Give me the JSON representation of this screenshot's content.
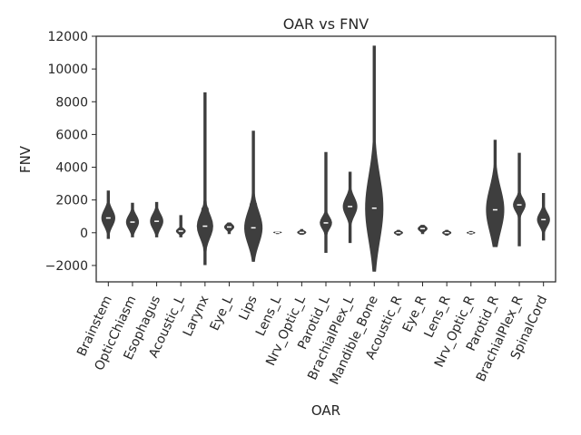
{
  "chart_data": {
    "type": "violin",
    "title": "OAR vs FNV",
    "xlabel": "OAR",
    "ylabel": "FNV",
    "ylim": [
      -3000,
      12000
    ],
    "yticks": [
      -2000,
      0,
      2000,
      4000,
      6000,
      8000,
      10000,
      12000
    ],
    "ytick_labels": [
      "−2000",
      "0",
      "2000",
      "4000",
      "6000",
      "8000",
      "10000",
      "12000"
    ],
    "grid": false,
    "categories": [
      "Brainstem",
      "OpticChiasm",
      "Esophagus",
      "Acoustic_L",
      "Larynx",
      "Eye_L",
      "Lips",
      "Lens_L",
      "Nrv_Optic_L",
      "Parotid_L",
      "BrachialPlex_L",
      "Mandible_Bone",
      "Acoustic_R",
      "Eye_R",
      "Lens_R",
      "Nrv_Optic_R",
      "Parotid_R",
      "BrachialPlex_R",
      "SpinalCord"
    ],
    "min": [
      -350,
      -250,
      -250,
      -250,
      -1950,
      -50,
      -1750,
      -50,
      -100,
      -1200,
      -600,
      -2350,
      -150,
      -50,
      -150,
      -80,
      -850,
      -800,
      -450
    ],
    "q1": [
      450,
      300,
      350,
      0,
      300,
      200,
      100,
      0,
      -50,
      400,
      1200,
      600,
      -50,
      150,
      -50,
      -30,
      1000,
      1300,
      300
    ],
    "median": [
      900,
      650,
      700,
      100,
      400,
      350,
      300,
      20,
      20,
      600,
      1600,
      1500,
      0,
      250,
      0,
      0,
      1400,
      1700,
      800
    ],
    "q3": [
      1350,
      1050,
      1150,
      250,
      1600,
      500,
      1900,
      40,
      100,
      1050,
      2200,
      4200,
      100,
      400,
      100,
      30,
      3400,
      2000,
      1050
    ],
    "max": [
      2550,
      1800,
      1850,
      1050,
      8550,
      600,
      6200,
      50,
      200,
      4900,
      3700,
      11400,
      150,
      450,
      150,
      80,
      5650,
      4850,
      2400
    ],
    "color": "#3e3e3e"
  }
}
